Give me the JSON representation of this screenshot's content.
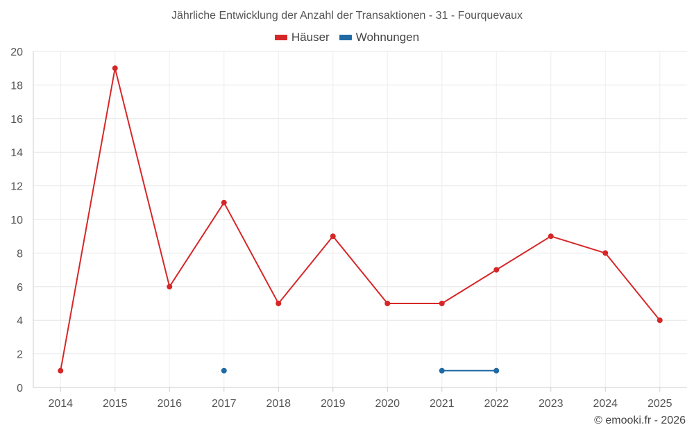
{
  "chart_data": {
    "type": "line",
    "title": "Jährliche Entwicklung der Anzahl der Transaktionen - 31 - Fourquevaux",
    "xlabel": "",
    "ylabel": "",
    "categories": [
      "2014",
      "2015",
      "2016",
      "2017",
      "2018",
      "2019",
      "2020",
      "2021",
      "2022",
      "2023",
      "2024",
      "2025"
    ],
    "ylim": [
      0,
      20
    ],
    "yticks": [
      "0",
      "2",
      "4",
      "6",
      "8",
      "10",
      "12",
      "14",
      "16",
      "18",
      "20"
    ],
    "grid": true,
    "legend_position": "top-center",
    "series": [
      {
        "name": "Häuser",
        "color": "#d62728",
        "values": [
          1,
          19,
          6,
          11,
          5,
          9,
          5,
          5,
          7,
          9,
          8,
          4
        ]
      },
      {
        "name": "Wohnungen",
        "color": "#1f6aa5",
        "values": [
          null,
          null,
          null,
          1,
          null,
          null,
          null,
          1,
          1,
          null,
          null,
          null
        ]
      }
    ]
  },
  "credit": "© emooki.fr - 2026"
}
